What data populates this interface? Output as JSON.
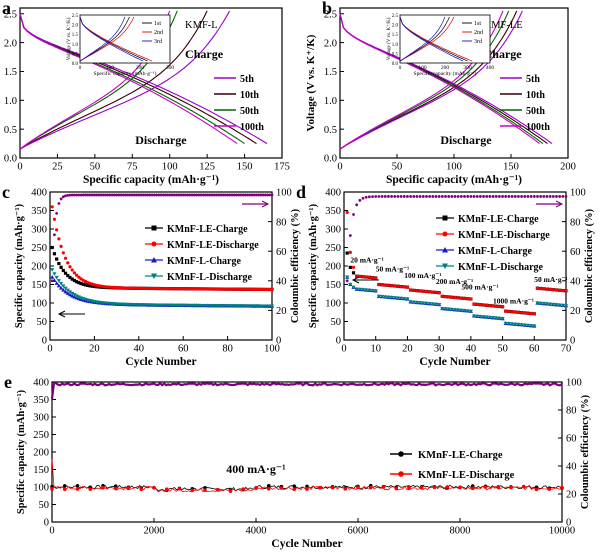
{
  "panels": [
    {
      "id": "a",
      "letter": "a",
      "xlabel": "Specific capacity (mAh·g⁻¹)",
      "ylabel": "Voltage (V vs. K⁺/K)",
      "xlim": [
        0,
        175
      ],
      "ylim": [
        0,
        2.6
      ],
      "xticks": [
        0,
        25,
        50,
        75,
        100,
        125,
        150,
        175
      ],
      "yticks": [
        0,
        0.5,
        1.0,
        1.5,
        2.0,
        2.5
      ],
      "labels": {
        "sample": "KMF-L",
        "charge": "Charge",
        "discharge": "Discharge"
      },
      "legend": [
        {
          "name": "5th",
          "color": "#9900cc"
        },
        {
          "name": "10th",
          "color": "#330000"
        },
        {
          "name": "50th",
          "color": "#006600"
        },
        {
          "name": "100th",
          "color": "#cc00cc"
        }
      ],
      "curves": [
        {
          "color": "#330000",
          "charge_end": 125,
          "discharge_end": 158
        },
        {
          "color": "#006600",
          "charge_end": 105,
          "discharge_end": 150
        },
        {
          "color": "#9900cc",
          "charge_end": 140,
          "discharge_end": 165
        },
        {
          "color": "#cc00cc",
          "charge_end": 100,
          "discharge_end": 145
        }
      ],
      "inset": {
        "xlim": [
          0,
          300
        ],
        "ylim": [
          0,
          2.5
        ],
        "xticks": [
          0,
          100,
          200,
          300
        ],
        "yticks": [
          0,
          0.5,
          1.0,
          1.5,
          2.0,
          2.5
        ],
        "xlabel": "Specific capacity (mAh·g⁻¹)",
        "ylabel": "Voltage (V vs. K⁺/K)",
        "legend": [
          {
            "name": "1st",
            "color": "#000000"
          },
          {
            "name": "2nd",
            "color": "#e00000"
          },
          {
            "name": "3rd",
            "color": "#1010cc"
          }
        ]
      }
    },
    {
      "id": "b",
      "letter": "b",
      "xlabel": "Specific capacity (mAh·g⁻¹)",
      "ylabel": "Voltage (V vs. K⁺/K)",
      "xlim": [
        0,
        200
      ],
      "ylim": [
        0,
        2.6
      ],
      "xticks": [
        0,
        50,
        100,
        150,
        200
      ],
      "yticks": [
        0,
        0.5,
        1.0,
        1.5,
        2.0,
        2.5
      ],
      "labels": {
        "sample": "KMF-LE",
        "charge": "Charge",
        "discharge": "Discharge"
      },
      "legend": [
        {
          "name": "5th",
          "color": "#9900cc"
        },
        {
          "name": "10th",
          "color": "#330000"
        },
        {
          "name": "50th",
          "color": "#006600"
        },
        {
          "name": "100th",
          "color": "#cc00cc"
        }
      ],
      "curves": [
        {
          "color": "#330000",
          "charge_end": 155,
          "discharge_end": 182
        },
        {
          "color": "#006600",
          "charge_end": 148,
          "discharge_end": 178
        },
        {
          "color": "#9900cc",
          "charge_end": 160,
          "discharge_end": 186
        },
        {
          "color": "#cc00cc",
          "charge_end": 143,
          "discharge_end": 175
        }
      ],
      "inset": {
        "xlim": [
          0,
          400
        ],
        "ylim": [
          0,
          2.5
        ],
        "xticks": [
          0,
          100,
          200,
          300,
          400
        ],
        "yticks": [
          0,
          0.5,
          1.0,
          1.5,
          2.0,
          2.5
        ],
        "xlabel": "Specific capacity (mAh·g⁻¹)",
        "ylabel": "Voltage (V vs. K⁺/K)",
        "legend": [
          {
            "name": "1st",
            "color": "#000000"
          },
          {
            "name": "2nd",
            "color": "#e00000"
          },
          {
            "name": "3rd",
            "color": "#1010cc"
          }
        ]
      }
    }
  ],
  "chart_c": {
    "letter": "c",
    "xlabel": "Cycle Number",
    "ylabel": "Specific capacity (mAh·g⁻¹)",
    "y2label": "Coloumbic efficiency (%)",
    "xlim": [
      0,
      100
    ],
    "ylim": [
      0,
      400
    ],
    "y2lim": [
      0,
      100
    ],
    "xticks": [
      0,
      20,
      40,
      60,
      80,
      100
    ],
    "yticks": [
      0,
      50,
      100,
      150,
      200,
      250,
      300,
      350,
      400
    ],
    "y2ticks": [
      0,
      20,
      40,
      60,
      80,
      100
    ],
    "series": [
      {
        "name": "KMnF-LE-Charge",
        "color": "#000000",
        "marker": "square",
        "start": 250,
        "plateau": 140,
        "decay": 6
      },
      {
        "name": "KMnF-LE-Discharge",
        "color": "#ff0000",
        "marker": "circle",
        "start": 360,
        "plateau": 140,
        "decay": 6
      },
      {
        "name": "KMnF-L-Charge",
        "color": "#1a1acc",
        "marker": "triangle",
        "start": 170,
        "plateau": 95,
        "decay": 8
      },
      {
        "name": "KMnF-L-Discharge",
        "color": "#008080",
        "marker": "triangle-down",
        "start": 190,
        "plateau": 95,
        "decay": 8
      }
    ],
    "efficiency": {
      "color": "#800080",
      "start": 40,
      "plateau": 98
    }
  },
  "chart_d": {
    "letter": "d",
    "xlabel": "Cycle Number",
    "ylabel": "Specific capacity (mAh·g⁻¹)",
    "y2label": "Coloumbic efficiency (%)",
    "xlim": [
      0,
      70
    ],
    "ylim": [
      0,
      400
    ],
    "y2lim": [
      0,
      100
    ],
    "xticks": [
      0,
      10,
      20,
      30,
      40,
      50,
      60,
      70
    ],
    "yticks": [
      0,
      50,
      100,
      150,
      200,
      250,
      300,
      350,
      400
    ],
    "y2ticks": [
      0,
      20,
      40,
      60,
      80,
      100
    ],
    "rates": [
      "20 mA·g⁻¹",
      "50 mA·g⁻¹",
      "100 mA·g⁻¹",
      "200 mA·g⁻¹",
      "500 mA·g⁻¹",
      "1000 mA·g⁻¹",
      "50 mA·g⁻¹"
    ],
    "le_levels": [
      175,
      150,
      135,
      118,
      97,
      78,
      140
    ],
    "l_levels": [
      140,
      118,
      103,
      85,
      65,
      45,
      100
    ],
    "series": [
      {
        "name": "KMnF-LE-Charge",
        "color": "#000000",
        "marker": "square"
      },
      {
        "name": "KMnF-LE-Discharge",
        "color": "#ff0000",
        "marker": "circle"
      },
      {
        "name": "KMnF-L-Charge",
        "color": "#1a1acc",
        "marker": "triangle"
      },
      {
        "name": "KMnF-L-Discharge",
        "color": "#008080",
        "marker": "triangle-down"
      }
    ],
    "efficiency": {
      "color": "#800080",
      "start": 40,
      "plateau": 97
    }
  },
  "chart_e": {
    "letter": "e",
    "xlabel": "Cycle Number",
    "ylabel": "Specific capacity (mAh·g⁻¹)",
    "y2label": "Coloumbic efficiency (%)",
    "xlim": [
      0,
      10000
    ],
    "ylim": [
      0,
      400
    ],
    "y2lim": [
      0,
      100
    ],
    "xticks": [
      0,
      2000,
      4000,
      6000,
      8000,
      10000
    ],
    "yticks": [
      0,
      50,
      100,
      150,
      200,
      250,
      300,
      350,
      400
    ],
    "y2ticks": [
      0,
      20,
      40,
      60,
      80,
      100
    ],
    "annotation": "400 mA·g⁻¹",
    "series": [
      {
        "name": "KMnF-LE-Charge",
        "color": "#000000",
        "marker": "circle",
        "value": 100
      },
      {
        "name": "KMnF-LE-Discharge",
        "color": "#ff0000",
        "marker": "circle",
        "value": 97
      }
    ],
    "efficiency": {
      "color": "#800080",
      "plateau": 99
    }
  }
}
